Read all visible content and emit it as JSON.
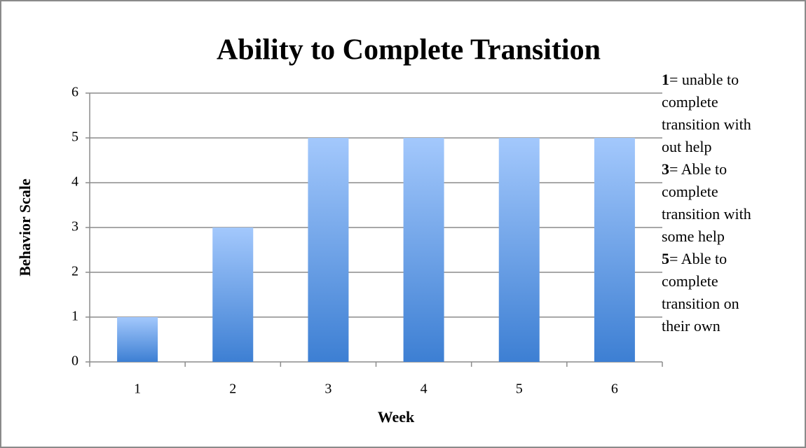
{
  "chart_data": {
    "type": "bar",
    "title": "Ability to Complete Transition",
    "x_label": "Week",
    "y_label": "Behavior Scale",
    "categories": [
      "1",
      "2",
      "3",
      "4",
      "5",
      "6"
    ],
    "values": [
      1,
      3,
      5,
      5,
      5,
      5
    ],
    "gradient": [
      "#a3c8fc",
      "#3d7fd3"
    ],
    "ylim": [
      0,
      6
    ],
    "yticks": [
      0,
      1,
      2,
      3,
      4,
      5,
      6
    ],
    "grid": true,
    "notes": [
      {
        "key": "1",
        "text": "= unable to complete transition with out help"
      },
      {
        "key": "3",
        "text": "= Able to complete transition with some help"
      },
      {
        "key": "5",
        "text": "= Able to complete transition on their own"
      }
    ]
  }
}
